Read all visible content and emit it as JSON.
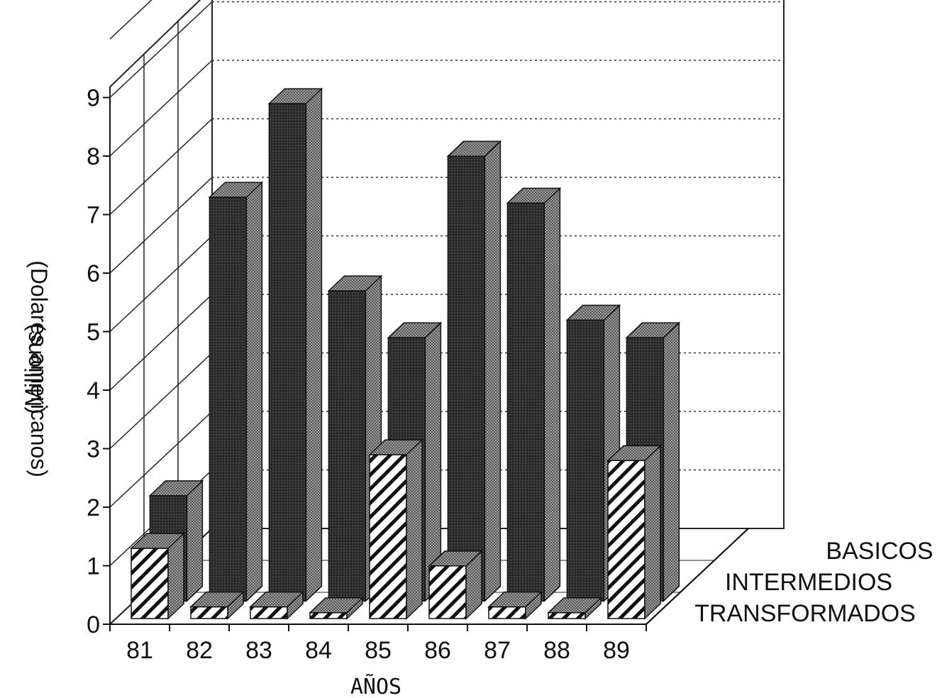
{
  "chart_data": {
    "type": "bar",
    "style": "3d-grouped-depth",
    "title": "",
    "xlabel": "AÑOS",
    "ylabel_line1": "(Dolares americanos)",
    "ylabel_line2": "(Millions)",
    "ylim": [
      0,
      9
    ],
    "yticks": [
      "0",
      "1",
      "2",
      "3",
      "4",
      "5",
      "6",
      "7",
      "8",
      "9"
    ],
    "grid": true,
    "categories": [
      "81",
      "82",
      "83",
      "84",
      "85",
      "86",
      "87",
      "88",
      "89"
    ],
    "series": [
      {
        "name": "BASICOS",
        "values": [
          0,
          0,
          0,
          0,
          0,
          0,
          0,
          0,
          0
        ]
      },
      {
        "name": "INTERMEDIOS",
        "values": [
          1.8,
          6.9,
          8.5,
          5.3,
          4.5,
          7.6,
          6.8,
          4.8,
          4.5
        ]
      },
      {
        "name": "TRANSFORMADOS",
        "values": [
          1.2,
          0.2,
          0.2,
          0.1,
          2.8,
          0.9,
          0.2,
          0.1,
          2.7
        ]
      }
    ],
    "colors": {
      "intermedios": "#2e2e2e",
      "intermedios_side": "#8c8c8c",
      "intermedios_top": "#a8a8a8",
      "transformados": "#ffffff",
      "transformados_side": "#b0b0b0"
    }
  }
}
